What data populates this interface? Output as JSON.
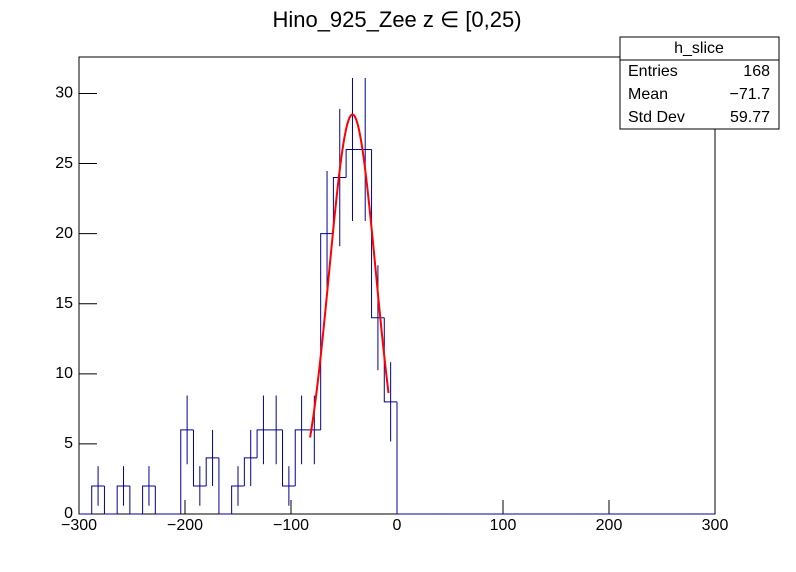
{
  "chart_data": {
    "type": "histogram",
    "title": "Hino_925_Zee z  ∈ [0,25)",
    "bins": [
      -300,
      -288,
      -276,
      -264,
      -252,
      -240,
      -228,
      -216,
      -204,
      -192,
      -180,
      -168,
      -156,
      -144,
      -132,
      -120,
      -108,
      -96,
      -84,
      -72,
      -60,
      -48,
      -36,
      -24,
      -12,
      0,
      12,
      24,
      36,
      48,
      60,
      72,
      84,
      96,
      108,
      120,
      132,
      144,
      156,
      168,
      180,
      192,
      204,
      216,
      228,
      240,
      252,
      264,
      276,
      288,
      300
    ],
    "values": [
      0,
      2,
      0,
      2,
      0,
      2,
      0,
      0,
      6,
      2,
      4,
      0,
      2,
      4,
      6,
      6,
      2,
      6,
      6,
      20,
      24,
      26,
      26,
      14,
      8,
      0,
      0,
      0,
      0,
      0,
      0,
      0,
      0,
      0,
      0,
      0,
      0,
      0,
      0,
      0,
      0,
      0,
      0,
      0,
      0,
      0,
      0,
      0,
      0,
      0
    ],
    "errors": [
      0,
      1.41,
      0,
      1.41,
      0,
      1.41,
      0,
      0,
      2.45,
      1.41,
      2,
      0,
      1.41,
      2,
      2.45,
      2.45,
      1.41,
      2.45,
      2.45,
      4.47,
      4.9,
      5.1,
      5.1,
      3.74,
      2.83,
      0,
      0,
      0,
      0,
      0,
      0,
      0,
      0,
      0,
      0,
      0,
      0,
      0,
      0,
      0,
      0,
      0,
      0,
      0,
      0,
      0,
      0,
      0,
      0,
      0
    ],
    "color": "#000099",
    "fit": {
      "color": "#ff0000",
      "amplitude": 28.5,
      "mean": -42,
      "sigma": 22,
      "range": [
        -82,
        -8
      ]
    },
    "xlim": [
      -300,
      300
    ],
    "xticks": [
      {
        "value": -300,
        "label": "−300"
      },
      {
        "value": -200,
        "label": "−200"
      },
      {
        "value": -100,
        "label": "−100"
      },
      0,
      100,
      200,
      300
    ],
    "ylim": [
      0,
      32.6
    ],
    "yticks": [
      0,
      5,
      10,
      15,
      20,
      25,
      30
    ],
    "stats": {
      "title": "h_slice",
      "rows": [
        {
          "label": "Entries",
          "value": 168
        },
        {
          "label": "Mean",
          "value": -71.7,
          "value_label": "−71.7"
        },
        {
          "label": "Std Dev",
          "value": 59.77
        }
      ]
    }
  }
}
